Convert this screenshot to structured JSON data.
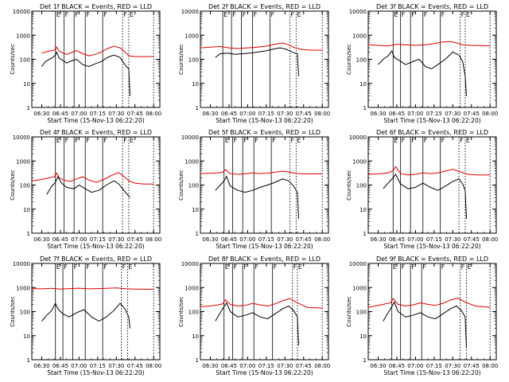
{
  "xlabel": "Start Time (15-Nov-13 06:22:20)",
  "ylabel": "Counts/sec",
  "x_ticks": [
    "06:30",
    "06:45",
    "07:00",
    "07:15",
    "07:30",
    "07:45",
    "08:00"
  ],
  "y_ticks": [
    "1",
    "10",
    "100",
    "1000",
    "10000"
  ],
  "colors": {
    "events": "#000000",
    "lld": "#e00000",
    "axis": "#000000"
  },
  "chart_data": [
    {
      "type": "line",
      "title": "Det 1f BLACK = Events, RED = LLD",
      "xlabel": "Start Time (15-Nov-13 06:22:20)",
      "ylabel": "Counts/sec",
      "y_scale": "log",
      "ylim": [
        1,
        10000
      ],
      "xlim": [
        "06:22",
        "08:05"
      ],
      "markers": [
        "06:41",
        "06:48",
        "06:56",
        "07:05",
        "07:19",
        "07:35",
        "07:40"
      ],
      "annotations": [
        "E",
        "F",
        "F",
        "F",
        "F",
        "F",
        "E"
      ],
      "series": [
        {
          "x": [
            "06:30",
            "06:33",
            "06:36",
            "06:38",
            "06:41",
            "06:42",
            "06:44",
            "06:47",
            "06:50",
            "06:55",
            "06:58",
            "07:03",
            "07:08",
            "07:13",
            "07:18",
            "07:23",
            "07:28",
            "07:33",
            "07:36",
            "07:38",
            "07:40",
            "07:45",
            "07:52",
            "08:00"
          ],
          "values": [
            180,
            200,
            220,
            230,
            250,
            320,
            220,
            180,
            160,
            200,
            230,
            170,
            140,
            160,
            200,
            280,
            350,
            300,
            220,
            180,
            140,
            130,
            130,
            130
          ]
        },
        {
          "x": [
            "06:30",
            "06:33",
            "06:36",
            "06:38",
            "06:41",
            "06:42",
            "06:44",
            "06:47",
            "06:50",
            "06:55",
            "06:58",
            "07:03",
            "07:08",
            "07:13",
            "07:18",
            "07:23",
            "07:28",
            "07:33",
            "07:36",
            "07:38",
            "07:40",
            "07:41"
          ],
          "values": [
            50,
            80,
            100,
            110,
            150,
            200,
            110,
            90,
            70,
            90,
            100,
            60,
            50,
            65,
            80,
            120,
            150,
            120,
            70,
            50,
            40,
            3
          ]
        }
      ]
    },
    {
      "type": "line",
      "title": "Det 2f BLACK = Events, RED = LLD",
      "xlabel": "Start Time (15-Nov-13 06:22:20)",
      "ylabel": "Counts/sec",
      "y_scale": "log",
      "ylim": [
        1,
        10000
      ],
      "xlim": [
        "06:22",
        "08:05"
      ],
      "markers": [
        "06:40",
        "06:47",
        "06:55",
        "07:04",
        "07:18",
        "07:34",
        "07:39"
      ],
      "annotations": [
        "E",
        "F",
        "F",
        "F",
        "F",
        "F",
        "E"
      ],
      "series": [
        {
          "x": [
            "06:22",
            "06:30",
            "06:38",
            "06:45",
            "06:52",
            "07:00",
            "07:08",
            "07:15",
            "07:22",
            "07:28",
            "07:33",
            "07:38",
            "07:45",
            "07:52",
            "08:00"
          ],
          "values": [
            300,
            320,
            340,
            300,
            280,
            300,
            320,
            350,
            420,
            480,
            400,
            300,
            250,
            240,
            240
          ]
        },
        {
          "x": [
            "06:34",
            "06:38",
            "06:44",
            "06:50",
            "06:56",
            "07:02",
            "07:08",
            "07:14",
            "07:20",
            "07:26",
            "07:31",
            "07:34",
            "07:38",
            "07:40",
            "07:41"
          ],
          "values": [
            120,
            170,
            180,
            160,
            170,
            180,
            200,
            220,
            260,
            300,
            260,
            220,
            180,
            170,
            20
          ]
        }
      ]
    },
    {
      "type": "line",
      "title": "Det 3f BLACK = Events, RED = LLD",
      "xlabel": "Start Time (15-Nov-13 06:22:20)",
      "ylabel": "Counts/sec",
      "y_scale": "log",
      "ylim": [
        1,
        10000
      ],
      "xlim": [
        "06:22",
        "08:05"
      ],
      "markers": [
        "06:42",
        "06:48",
        "06:56",
        "07:06",
        "07:20",
        "07:36",
        "07:40"
      ],
      "annotations": [
        "E",
        "F",
        "F",
        "F",
        "F",
        "F",
        "E"
      ],
      "series": [
        {
          "x": [
            "06:22",
            "06:30",
            "06:38",
            "06:45",
            "06:52",
            "07:00",
            "07:08",
            "07:15",
            "07:22",
            "07:28",
            "07:33",
            "07:38",
            "07:45",
            "07:52",
            "08:00"
          ],
          "values": [
            400,
            380,
            360,
            420,
            400,
            380,
            400,
            450,
            520,
            550,
            480,
            400,
            380,
            370,
            360
          ]
        },
        {
          "x": [
            "06:30",
            "06:34",
            "06:38",
            "06:41",
            "06:43",
            "06:47",
            "06:52",
            "06:58",
            "07:03",
            "07:08",
            "07:13",
            "07:18",
            "07:24",
            "07:30",
            "07:35",
            "07:38",
            "07:40",
            "07:41"
          ],
          "values": [
            60,
            100,
            140,
            220,
            120,
            90,
            60,
            80,
            100,
            50,
            40,
            60,
            100,
            200,
            150,
            80,
            20,
            3
          ]
        }
      ]
    },
    {
      "type": "line",
      "title": "Det 4f BLACK = Events, RED = LLD",
      "xlabel": "Start Time (15-Nov-13 06:22:20)",
      "ylabel": "Counts/sec",
      "y_scale": "log",
      "ylim": [
        1,
        10000
      ],
      "xlim": [
        "06:22",
        "08:05"
      ],
      "markers": [
        "06:41",
        "06:48",
        "06:56",
        "07:05",
        "07:19",
        "07:35",
        "07:40"
      ],
      "annotations": [
        "E",
        "F",
        "F",
        "F",
        "F",
        "F",
        "E"
      ],
      "series": [
        {
          "x": [
            "06:22",
            "06:30",
            "06:36",
            "06:40",
            "06:42",
            "06:44",
            "06:48",
            "06:53",
            "06:58",
            "07:03",
            "07:08",
            "07:14",
            "07:20",
            "07:26",
            "07:32",
            "07:36",
            "07:40",
            "07:45",
            "07:52",
            "08:00"
          ],
          "values": [
            150,
            170,
            200,
            220,
            310,
            200,
            160,
            140,
            180,
            220,
            160,
            130,
            170,
            250,
            330,
            230,
            150,
            120,
            110,
            110
          ]
        },
        {
          "x": [
            "06:34",
            "06:38",
            "06:41",
            "06:43",
            "06:46",
            "06:50",
            "06:56",
            "07:00",
            "07:05",
            "07:10",
            "07:16",
            "07:22",
            "07:28",
            "07:32",
            "07:36",
            "07:39",
            "07:41"
          ],
          "values": [
            40,
            90,
            130,
            220,
            120,
            80,
            70,
            100,
            70,
            50,
            60,
            100,
            150,
            110,
            60,
            40,
            30
          ]
        }
      ]
    },
    {
      "type": "line",
      "title": "Det 5f BLACK = Events, RED = LLD",
      "xlabel": "Start Time (15-Nov-13 06:22:20)",
      "ylabel": "Counts/sec",
      "y_scale": "log",
      "ylim": [
        1,
        10000
      ],
      "xlim": [
        "06:22",
        "08:05"
      ],
      "markers": [
        "06:41",
        "06:48",
        "06:56",
        "07:05",
        "07:19",
        "07:34",
        "07:39"
      ],
      "annotations": [
        "E",
        "F",
        "F",
        "F",
        "F",
        "F",
        "E"
      ],
      "series": [
        {
          "x": [
            "06:22",
            "06:30",
            "06:36",
            "06:40",
            "06:42",
            "06:46",
            "06:52",
            "06:58",
            "07:04",
            "07:10",
            "07:16",
            "07:22",
            "07:28",
            "07:34",
            "07:40",
            "07:48",
            "08:00"
          ],
          "values": [
            300,
            310,
            320,
            340,
            440,
            300,
            280,
            290,
            320,
            300,
            310,
            340,
            380,
            340,
            300,
            290,
            290
          ]
        },
        {
          "x": [
            "06:34",
            "06:38",
            "06:41",
            "06:43",
            "06:46",
            "06:52",
            "06:58",
            "07:04",
            "07:10",
            "07:16",
            "07:22",
            "07:28",
            "07:33",
            "07:37",
            "07:40",
            "07:41"
          ],
          "values": [
            60,
            100,
            150,
            230,
            90,
            60,
            50,
            60,
            80,
            100,
            130,
            180,
            150,
            90,
            50,
            4
          ]
        }
      ]
    },
    {
      "type": "line",
      "title": "Det 6f BLACK = Events, RED = LLD",
      "xlabel": "Start Time (15-Nov-13 06:22:20)",
      "ylabel": "Counts/sec",
      "y_scale": "log",
      "ylim": [
        1,
        10000
      ],
      "xlim": [
        "06:22",
        "08:05"
      ],
      "markers": [
        "06:42",
        "06:48",
        "06:56",
        "07:06",
        "07:20",
        "07:35",
        "07:40"
      ],
      "annotations": [
        "E",
        "F",
        "F",
        "F",
        "F",
        "F",
        "E"
      ],
      "series": [
        {
          "x": [
            "06:22",
            "06:30",
            "06:38",
            "06:42",
            "06:44",
            "06:48",
            "06:54",
            "07:00",
            "07:06",
            "07:12",
            "07:18",
            "07:24",
            "07:30",
            "07:36",
            "07:42",
            "07:50",
            "08:00"
          ],
          "values": [
            280,
            290,
            320,
            400,
            580,
            300,
            260,
            280,
            320,
            300,
            320,
            380,
            450,
            350,
            280,
            260,
            260
          ]
        },
        {
          "x": [
            "06:34",
            "06:38",
            "06:42",
            "06:44",
            "06:48",
            "06:54",
            "07:00",
            "07:06",
            "07:12",
            "07:18",
            "07:24",
            "07:30",
            "07:35",
            "07:38",
            "07:40",
            "07:41"
          ],
          "values": [
            70,
            120,
            200,
            280,
            110,
            70,
            80,
            120,
            80,
            60,
            90,
            140,
            180,
            110,
            60,
            4
          ]
        }
      ]
    },
    {
      "type": "line",
      "title": "Det 7f BLACK = Events, RED = LLD",
      "xlabel": "Start Time (15-Nov-13 06:22:20)",
      "ylabel": "Counts/sec",
      "y_scale": "log",
      "ylim": [
        1,
        10000
      ],
      "xlim": [
        "06:22",
        "08:05"
      ],
      "markers": [
        "06:41",
        "06:47",
        "06:55",
        "07:05",
        "07:19",
        "07:34",
        "07:39"
      ],
      "annotations": [
        "E",
        "F",
        "F",
        "F",
        "F",
        "F",
        "E"
      ],
      "series": [
        {
          "x": [
            "06:22",
            "06:30",
            "06:38",
            "06:45",
            "06:52",
            "07:00",
            "07:08",
            "07:15",
            "07:22",
            "07:30",
            "07:38",
            "07:45",
            "07:52",
            "08:00"
          ],
          "values": [
            900,
            880,
            920,
            860,
            900,
            940,
            880,
            900,
            920,
            960,
            880,
            860,
            850,
            840
          ]
        },
        {
          "x": [
            "06:30",
            "06:34",
            "06:38",
            "06:41",
            "06:43",
            "06:47",
            "06:52",
            "06:58",
            "07:04",
            "07:10",
            "07:16",
            "07:22",
            "07:28",
            "07:33",
            "07:37",
            "07:40",
            "07:41"
          ],
          "values": [
            40,
            70,
            110,
            220,
            130,
            80,
            60,
            90,
            120,
            60,
            40,
            60,
            110,
            220,
            130,
            60,
            20
          ]
        }
      ]
    },
    {
      "type": "line",
      "title": "Det 8f BLACK = Events, RED = LLD",
      "xlabel": "Start Time (15-Nov-13 06:22:20)",
      "ylabel": "Counts/sec",
      "y_scale": "log",
      "ylim": [
        1,
        10000
      ],
      "xlim": [
        "06:22",
        "08:05"
      ],
      "markers": [
        "06:41",
        "06:48",
        "06:56",
        "07:05",
        "07:20",
        "07:36",
        "07:40"
      ],
      "annotations": [
        "E",
        "F",
        "F",
        "F",
        "F",
        "F",
        "E"
      ],
      "series": [
        {
          "x": [
            "06:22",
            "06:30",
            "06:36",
            "06:40",
            "06:42",
            "06:46",
            "06:52",
            "06:58",
            "07:04",
            "07:10",
            "07:16",
            "07:22",
            "07:28",
            "07:34",
            "07:40",
            "07:48",
            "08:00"
          ],
          "values": [
            160,
            170,
            190,
            210,
            310,
            200,
            170,
            180,
            220,
            190,
            170,
            210,
            280,
            350,
            230,
            150,
            140
          ]
        },
        {
          "x": [
            "06:34",
            "06:38",
            "06:41",
            "06:43",
            "06:46",
            "06:52",
            "06:58",
            "07:04",
            "07:10",
            "07:16",
            "07:22",
            "07:28",
            "07:33",
            "07:37",
            "07:40",
            "07:41"
          ],
          "values": [
            40,
            90,
            160,
            230,
            100,
            60,
            70,
            90,
            60,
            50,
            80,
            130,
            170,
            110,
            60,
            4
          ]
        }
      ]
    },
    {
      "type": "line",
      "title": "Det 9f BLACK = Events, RED = LLD",
      "xlabel": "Start Time (15-Nov-13 06:22:20)",
      "ylabel": "Counts/sec",
      "y_scale": "log",
      "ylim": [
        1,
        10000
      ],
      "xlim": [
        "06:22",
        "08:05"
      ],
      "markers": [
        "06:41",
        "06:48",
        "06:56",
        "07:05",
        "07:20",
        "07:36",
        "07:41"
      ],
      "annotations": [
        "E",
        "F",
        "F",
        "F",
        "F",
        "F",
        "E"
      ],
      "series": [
        {
          "x": [
            "06:22",
            "06:30",
            "06:36",
            "06:40",
            "06:42",
            "06:46",
            "06:52",
            "06:58",
            "07:04",
            "07:10",
            "07:16",
            "07:22",
            "07:28",
            "07:34",
            "07:40",
            "07:48",
            "08:00"
          ],
          "values": [
            150,
            180,
            210,
            230,
            350,
            200,
            170,
            190,
            230,
            200,
            180,
            220,
            300,
            360,
            250,
            170,
            150
          ]
        },
        {
          "x": [
            "06:34",
            "06:38",
            "06:41",
            "06:43",
            "06:46",
            "06:52",
            "06:58",
            "07:04",
            "07:10",
            "07:16",
            "07:22",
            "07:28",
            "07:33",
            "07:37",
            "07:40",
            "07:41"
          ],
          "values": [
            40,
            90,
            160,
            250,
            100,
            60,
            70,
            90,
            60,
            50,
            80,
            130,
            170,
            110,
            60,
            3
          ]
        }
      ]
    }
  ]
}
